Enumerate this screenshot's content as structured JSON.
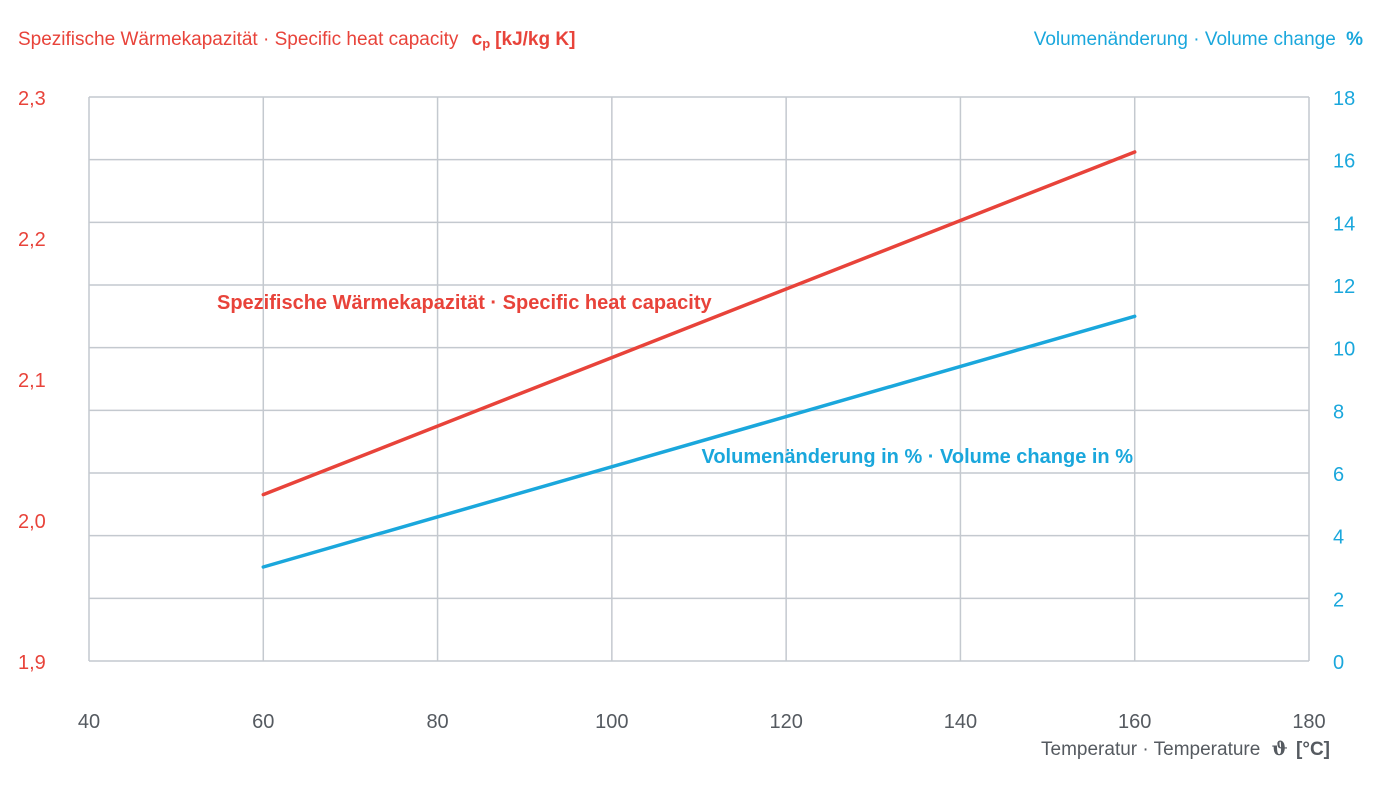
{
  "chart_data": {
    "type": "line",
    "title_left": {
      "text": "Spezifische Wärmekapazität · Specific heat capacity",
      "unit_symbol": "c",
      "unit_subscript": "p",
      "unit": "[kJ/kg K]"
    },
    "title_right": {
      "text": "Volumenänderung · Volume change",
      "unit": "%"
    },
    "xlabel": {
      "text": "Temperatur · Temperature",
      "symbol": "ϑ",
      "unit": "[°C]"
    },
    "x_range": [
      40,
      180
    ],
    "x_ticks": [
      40,
      60,
      80,
      100,
      120,
      140,
      160,
      180
    ],
    "y_left_range": [
      1.9,
      2.3
    ],
    "y_left_ticks": [
      "1,9",
      "2,0",
      "2,1",
      "2,2",
      "2,3"
    ],
    "y_left_values": [
      1.9,
      2.0,
      2.1,
      2.2,
      2.3
    ],
    "y_right_range": [
      0,
      18
    ],
    "y_right_ticks": [
      0,
      2,
      4,
      6,
      8,
      10,
      12,
      14,
      16,
      18
    ],
    "grid": true,
    "colors": {
      "heat": "#e8433a",
      "volume": "#1aa7dc",
      "grid": "#c4c9cf",
      "axis_text": "#555a60"
    },
    "series": [
      {
        "name": "Spezifische Wärmekapazität · Specific heat capacity",
        "axis": "left",
        "color": "#e8433a",
        "x": [
          60,
          160
        ],
        "y": [
          2.018,
          2.261
        ]
      },
      {
        "name": "Volumenänderung in % · Volume change in %",
        "axis": "right",
        "color": "#1aa7dc",
        "x": [
          60,
          160
        ],
        "y": [
          3.0,
          11.0
        ]
      }
    ]
  }
}
